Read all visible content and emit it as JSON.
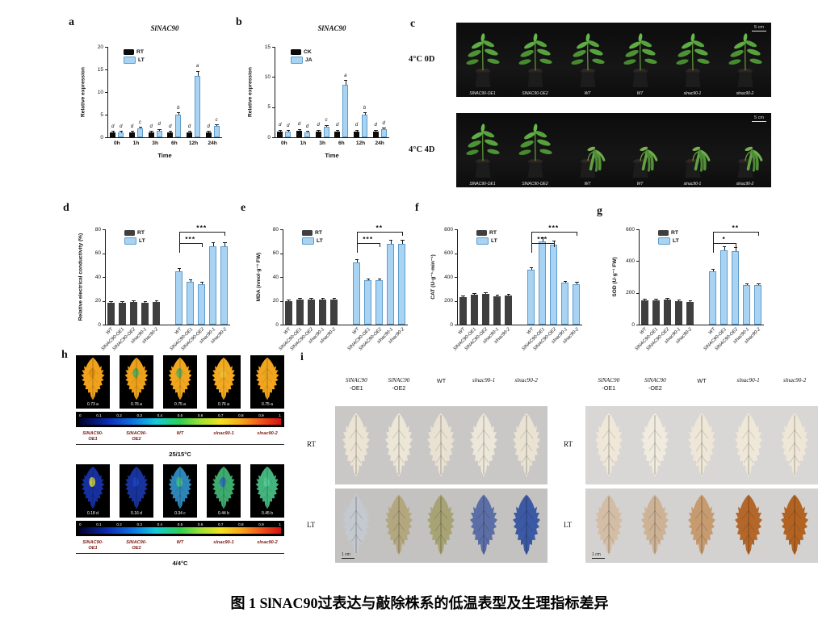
{
  "figure": {
    "caption": "图 1 SlNAC90过表达与敲除株系的低温表型及生理指标差异"
  },
  "colors": {
    "rt_black": "#0b0b0b",
    "rt_gray": "#3f3f3f",
    "lt_blue": "#a9d3f2",
    "lt_border": "#5f9bc9",
    "axis": "#1a1a1a"
  },
  "chart_data": [
    {
      "id": "a",
      "type": "bar",
      "panel_label": "a",
      "title": "SlNAC90",
      "ylabel": "Relative expression",
      "xlabel": "Time",
      "ylim": [
        0,
        20
      ],
      "yticks": [
        0,
        5,
        10,
        15,
        20
      ],
      "categories": [
        "0h",
        "1h",
        "3h",
        "6h",
        "12h",
        "24h"
      ],
      "legend_position": "top-left-inside",
      "series": [
        {
          "name": "RT",
          "values": [
            1.0,
            1.0,
            1.0,
            1.0,
            1.0,
            1.0
          ],
          "letters": [
            "d",
            "d",
            "d",
            "d",
            "d",
            "d"
          ]
        },
        {
          "name": "LT",
          "values": [
            1.0,
            1.9,
            1.5,
            5.0,
            13.5,
            2.5
          ],
          "letters": [
            "d",
            "c",
            "d",
            "b",
            "a",
            "c"
          ]
        }
      ]
    },
    {
      "id": "b",
      "type": "bar",
      "panel_label": "b",
      "title": "SlNAC90",
      "ylabel": "Relative expression",
      "xlabel": "Time",
      "ylim": [
        0,
        15
      ],
      "yticks": [
        0,
        5,
        10,
        15
      ],
      "categories": [
        "0h",
        "1h",
        "3h",
        "6h",
        "12h",
        "24h"
      ],
      "legend_position": "top-left-inside",
      "series": [
        {
          "name": "CK",
          "values": [
            1.0,
            1.1,
            1.0,
            1.0,
            1.0,
            1.0
          ],
          "letters": [
            "d",
            "d",
            "d",
            "d",
            "d",
            "d"
          ]
        },
        {
          "name": "JA",
          "values": [
            0.9,
            0.8,
            1.8,
            8.7,
            3.8,
            1.3
          ],
          "letters": [
            "d",
            "d",
            "c",
            "a",
            "b",
            "d"
          ]
        }
      ]
    },
    {
      "id": "d",
      "type": "bar",
      "panel_label": "d",
      "ylabel": "Relative electrical conductivity (%)",
      "ylim": [
        0,
        80
      ],
      "yticks": [
        0,
        20,
        40,
        60,
        80
      ],
      "categories": [
        "WT",
        "SlNAC90-OE1",
        "SlNAC90-OE2",
        "slnac90-1",
        "slnac90-2"
      ],
      "group_layout": "two-groups",
      "series": [
        {
          "name": "RT",
          "values": [
            18,
            18,
            19,
            18,
            19
          ]
        },
        {
          "name": "LT",
          "values": [
            45,
            36,
            34,
            66,
            66
          ]
        }
      ],
      "significance": [
        {
          "stars": "***",
          "from": 0,
          "to": 2,
          "level": 1
        },
        {
          "stars": "***",
          "from": 0,
          "to": 4,
          "level": 2
        }
      ]
    },
    {
      "id": "e",
      "type": "bar",
      "panel_label": "e",
      "ylabel": "MDA (nmol·g⁻¹ FW)",
      "ylim": [
        0,
        80
      ],
      "yticks": [
        0,
        20,
        40,
        60,
        80
      ],
      "categories": [
        "WT",
        "SlNAC90-OE1",
        "SlNAC90-OE2",
        "slnac90-1",
        "slnac90-2"
      ],
      "group_layout": "two-groups",
      "series": [
        {
          "name": "RT",
          "values": [
            20,
            21,
            21,
            21,
            21
          ]
        },
        {
          "name": "LT",
          "values": [
            52,
            37,
            37,
            68,
            68
          ]
        }
      ],
      "significance": [
        {
          "stars": "***",
          "from": 0,
          "to": 2,
          "level": 1
        },
        {
          "stars": "**",
          "from": 0,
          "to": 4,
          "level": 2
        }
      ]
    },
    {
      "id": "f",
      "type": "bar",
      "panel_label": "f",
      "ylabel": "CAT (U·g⁻¹·min⁻¹)",
      "ylim": [
        0,
        800
      ],
      "yticks": [
        0,
        200,
        400,
        600,
        800
      ],
      "categories": [
        "WT",
        "SlNAC90-OE1",
        "SlNAC90-OE2",
        "slnac90-1",
        "slnac90-2"
      ],
      "group_layout": "two-groups",
      "series": [
        {
          "name": "RT",
          "values": [
            230,
            250,
            260,
            235,
            245
          ]
        },
        {
          "name": "LT",
          "values": [
            460,
            695,
            670,
            350,
            340
          ]
        }
      ],
      "significance": [
        {
          "stars": "***",
          "from": 0,
          "to": 2,
          "level": 1
        },
        {
          "stars": "***",
          "from": 0,
          "to": 4,
          "level": 2
        }
      ]
    },
    {
      "id": "g",
      "type": "bar",
      "panel_label": "g",
      "ylabel": "SOD (U·g⁻¹ FW)",
      "ylim": [
        0,
        600
      ],
      "yticks": [
        0,
        200,
        400,
        600
      ],
      "categories": [
        "WT",
        "SlNAC90-OE1",
        "SlNAC90-OE2",
        "slnac90-1",
        "slnac90-2"
      ],
      "group_layout": "two-groups",
      "series": [
        {
          "name": "RT",
          "values": [
            155,
            155,
            160,
            145,
            140
          ]
        },
        {
          "name": "LT",
          "values": [
            335,
            470,
            465,
            248,
            248
          ]
        }
      ],
      "significance": [
        {
          "stars": "*",
          "from": 0,
          "to": 2,
          "level": 1
        },
        {
          "stars": "**",
          "from": 0,
          "to": 4,
          "level": 2
        }
      ]
    }
  ],
  "panel_c": {
    "panel_label": "c",
    "rows": [
      {
        "condition": "4°C 0D",
        "scale_bar": "5 cm",
        "plant_labels": [
          "SlNAC90-OE1",
          "SlNAC90-OE2",
          "WT",
          "WT",
          "slnac90-1",
          "slnac90-2"
        ],
        "wilted": [
          false,
          false,
          false,
          false,
          false,
          false
        ]
      },
      {
        "condition": "4°C 4D",
        "scale_bar": "5 cm",
        "plant_labels": [
          "SlNAC90-OE1",
          "SlNAC90-OE2",
          "WT",
          "WT",
          "slnac90-1",
          "slnac90-2"
        ],
        "wilted": [
          false,
          false,
          true,
          true,
          true,
          true
        ]
      }
    ]
  },
  "panel_h": {
    "panel_label": "h",
    "scale_ticks": [
      "0",
      "0.1",
      "0.2",
      "0.3",
      "0.4",
      "0.5",
      "0.6",
      "0.7",
      "0.8",
      "0.9",
      "1"
    ],
    "line_labels": [
      [
        "SlNAC90-",
        "OE1"
      ],
      [
        "SlNAC90-",
        "OE2"
      ],
      [
        "WT"
      ],
      [
        "slnac90-1"
      ],
      [
        "slnac90-2"
      ]
    ],
    "groups": [
      {
        "temperature": "25/15°C",
        "leaf_values": [
          "0.73 a",
          "0.76 a",
          "0.75 a",
          "0.76 a",
          "0.75 a"
        ],
        "leaf_colors": [
          "#f0a21c",
          "#eda01a",
          "#f2a61e",
          "#f4aa20",
          "#f1a41d"
        ],
        "accent_colors": [
          "#d98c10",
          "#3faf5a",
          "#49b063",
          "#e8c33a",
          "#e2a226"
        ]
      },
      {
        "temperature": "4/4°C",
        "leaf_values": [
          "0.18 d",
          "0.16 d",
          "0.34 c",
          "0.44 b",
          "0.45 b"
        ],
        "leaf_colors": [
          "#16309f",
          "#18339c",
          "#2e86b8",
          "#3dab6d",
          "#43b47d"
        ],
        "accent_colors": [
          "#e8e23a",
          "#1b47c9",
          "#46c77e",
          "#2f61c4",
          "#57cf9a"
        ]
      }
    ]
  },
  "panel_i": {
    "panel_label": "i",
    "groups": [
      {
        "stain": "trypan-blue",
        "bg_rt": "#c9c8c6",
        "bg_lt": "#c3c2c0",
        "col_headers": [
          [
            "SlNAC90",
            "-OE1"
          ],
          [
            "SlNAC90",
            "-OE2"
          ],
          [
            "WT"
          ],
          [
            "slnac90-1"
          ],
          [
            "slnac90-2"
          ]
        ],
        "row_labels": [
          "RT",
          "LT"
        ],
        "rt_leaf_colors": [
          "#ebe4d4",
          "#ece6d6",
          "#e9e2d2",
          "#ece7d9",
          "#eae3d3"
        ],
        "lt_leaf_colors": [
          "#c3c9cf",
          "#b3a77f",
          "#a7a374",
          "#5b6ea6",
          "#3c59a4"
        ],
        "scale_bar": "1 cm"
      },
      {
        "stain": "dab",
        "bg_rt": "#d8d7d5",
        "bg_lt": "#d3d2d0",
        "col_headers": [
          [
            "SlNAC90",
            "-OE1"
          ],
          [
            "SlNAC90",
            "-OE2"
          ],
          [
            "WT"
          ],
          [
            "slnac90-1"
          ],
          [
            "slnac90-2"
          ]
        ],
        "row_labels": [
          "RT",
          "LT"
        ],
        "rt_leaf_colors": [
          "#efe7d8",
          "#f1ebdf",
          "#eee6d6",
          "#efe8d9",
          "#eee6d7"
        ],
        "lt_leaf_colors": [
          "#d3bda4",
          "#cdb296",
          "#c69b70",
          "#b4672b",
          "#b26322"
        ],
        "scale_bar": "1 cm"
      }
    ]
  }
}
